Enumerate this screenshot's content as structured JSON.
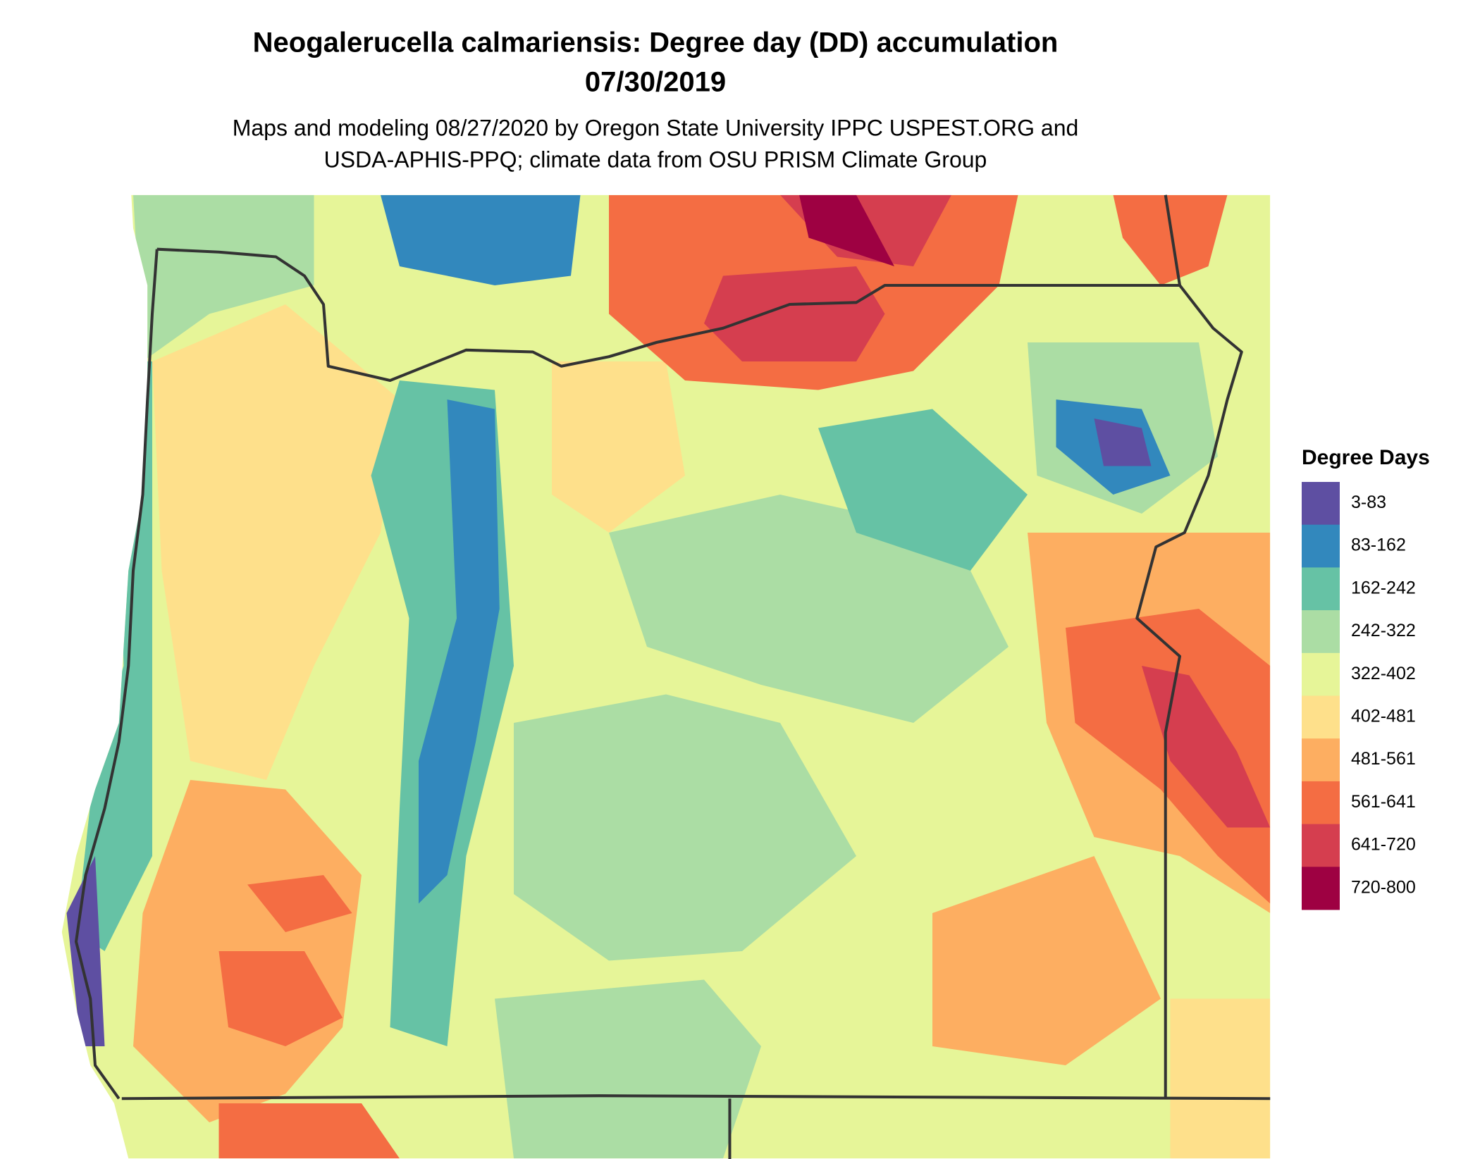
{
  "title": "Neogalerucella calmariensis: Degree day (DD) accumulation",
  "date": "07/30/2019",
  "subtitle": [
    "Maps and modeling 08/27/2020 by Oregon State University IPPC USPEST.ORG and",
    "USDA-APHIS-PPQ; climate data from OSU PRISM Climate Group"
  ],
  "legend": {
    "title": "Degree Days",
    "items": [
      {
        "label": "3-83",
        "color": "#5e4fa2"
      },
      {
        "label": "83-162",
        "color": "#3288bd"
      },
      {
        "label": "162-242",
        "color": "#66c2a5"
      },
      {
        "label": "242-322",
        "color": "#abdda4"
      },
      {
        "label": "322-402",
        "color": "#e6f598"
      },
      {
        "label": "402-481",
        "color": "#fee08b"
      },
      {
        "label": "481-561",
        "color": "#fdae61"
      },
      {
        "label": "561-641",
        "color": "#f46d43"
      },
      {
        "label": "641-720",
        "color": "#d53e4f"
      },
      {
        "label": "720-800",
        "color": "#9e0142"
      }
    ]
  }
}
